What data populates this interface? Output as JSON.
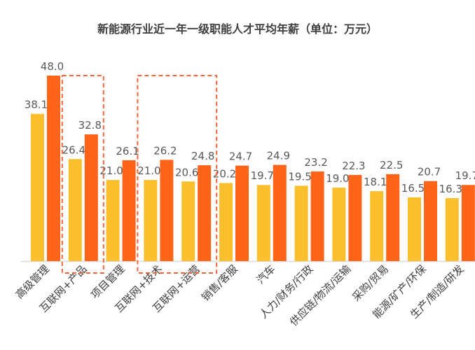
{
  "chart_data": {
    "type": "bar",
    "title": "新能源行业近一年一级职能人才平均年薪（单位：万元）",
    "categories": [
      "高级管理",
      "互联网+产品",
      "项目管理",
      "互联网+技术",
      "互联网+运营",
      "销售/客服",
      "汽车",
      "人力/财务/行政",
      "供应链/物流/运输",
      "采购/贸易",
      "能源/矿产/环保",
      "生产/制造/研发"
    ],
    "series": [
      {
        "values": [
          38.1,
          26.4,
          21.0,
          21.0,
          20.6,
          20.2,
          19.7,
          19.5,
          19.0,
          18.1,
          16.5,
          16.3
        ],
        "color": "#FBBF2E"
      },
      {
        "values": [
          48.0,
          32.8,
          26.1,
          26.2,
          24.8,
          24.7,
          24.9,
          23.2,
          22.3,
          22.5,
          20.7,
          19.7
        ],
        "color": "#FF6418"
      }
    ],
    "ylim": [
      0,
      48
    ],
    "grid": false,
    "legend": "none",
    "highlighted_categories": [
      [
        "互联网+产品"
      ],
      [
        "互联网+技术",
        "互联网+运营"
      ]
    ],
    "highlight_color": "#F4643A"
  }
}
